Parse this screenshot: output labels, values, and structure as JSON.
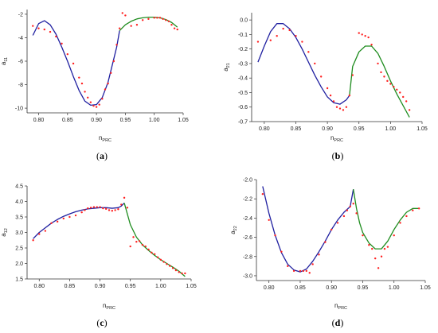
{
  "colors": {
    "blue": "#1f1fa0",
    "green": "#1e8c1e",
    "red": "#ff2020",
    "axis": "#333333"
  },
  "chart_data": [
    {
      "type": "scatter",
      "caption": {
        "open": "(",
        "letter": "a",
        "close": ")"
      },
      "xlabel": {
        "main": "n",
        "sub": "PRC"
      },
      "ylabel": {
        "main": "a",
        "sub": "11"
      },
      "xlim": [
        0.78,
        1.05
      ],
      "ylim": [
        -10.4,
        -1.6
      ],
      "xticks": [
        0.8,
        0.85,
        0.9,
        0.95,
        1.0,
        1.05
      ],
      "xtick_labels": [
        "0.80",
        "0.85",
        "0.90",
        "0.95",
        "1.00",
        "1.05"
      ],
      "yticks": [
        -10,
        -8,
        -6,
        -4,
        -2
      ],
      "ytick_labels": [
        "-10",
        "-8",
        "-6",
        "-4",
        "-2"
      ],
      "series": [
        {
          "kind": "line",
          "color": "blue",
          "x": [
            0.79,
            0.8,
            0.81,
            0.82,
            0.83,
            0.84,
            0.85,
            0.86,
            0.87,
            0.88,
            0.89,
            0.9,
            0.91,
            0.92,
            0.93,
            0.935,
            0.94
          ],
          "y": [
            -3.8,
            -2.8,
            -2.55,
            -2.9,
            -3.7,
            -4.8,
            -6.0,
            -7.3,
            -8.5,
            -9.4,
            -9.75,
            -9.7,
            -9.1,
            -7.8,
            -5.8,
            -4.8,
            -3.4
          ]
        },
        {
          "kind": "line",
          "color": "green",
          "x": [
            0.94,
            0.95,
            0.96,
            0.97,
            0.98,
            0.99,
            1.0,
            1.01,
            1.02,
            1.03,
            1.04
          ],
          "y": [
            -3.4,
            -2.9,
            -2.6,
            -2.4,
            -2.3,
            -2.25,
            -2.25,
            -2.3,
            -2.45,
            -2.7,
            -3.1
          ]
        },
        {
          "kind": "points",
          "color": "red",
          "x": [
            0.79,
            0.8,
            0.81,
            0.82,
            0.83,
            0.84,
            0.85,
            0.86,
            0.87,
            0.875,
            0.88,
            0.885,
            0.89,
            0.895,
            0.9,
            0.905,
            0.91,
            0.915,
            0.92,
            0.925,
            0.93,
            0.935,
            0.94,
            0.945,
            0.95,
            0.96,
            0.97,
            0.98,
            0.99,
            1.0,
            1.005,
            1.01,
            1.015,
            1.02,
            1.025,
            1.03,
            1.035,
            1.04
          ],
          "y": [
            -3.0,
            -3.2,
            -3.3,
            -3.5,
            -3.9,
            -4.5,
            -5.4,
            -6.2,
            -7.4,
            -7.9,
            -8.6,
            -9.1,
            -9.5,
            -9.8,
            -9.9,
            -9.7,
            -9.2,
            -8.4,
            -7.9,
            -7.0,
            -6.0,
            -4.6,
            -3.2,
            -1.9,
            -2.1,
            -3.0,
            -2.9,
            -2.5,
            -2.4,
            -2.3,
            -2.3,
            -2.3,
            -2.4,
            -2.5,
            -2.6,
            -2.9,
            -3.2,
            -3.3
          ]
        }
      ]
    },
    {
      "type": "scatter",
      "caption": {
        "open": "(",
        "letter": "b",
        "close": ")"
      },
      "xlabel": {
        "main": "n",
        "sub": "PRC"
      },
      "ylabel": {
        "main": "a",
        "sub": "21"
      },
      "xlim": [
        0.78,
        1.05
      ],
      "ylim": [
        -0.7,
        0.05
      ],
      "xticks": [
        0.8,
        0.85,
        0.9,
        0.95,
        1.0,
        1.05
      ],
      "xtick_labels": [
        "0.80",
        "0.85",
        "0.90",
        "0.95",
        "1.00",
        "1.05"
      ],
      "yticks": [
        -0.7,
        -0.6,
        -0.5,
        -0.4,
        -0.3,
        -0.2,
        -0.1,
        0.0
      ],
      "ytick_labels": [
        "-0.7",
        "-0.6",
        "-0.5",
        "-0.4",
        "-0.3",
        "-0.2",
        "-0.1",
        "0.0"
      ],
      "series": [
        {
          "kind": "line",
          "color": "blue",
          "x": [
            0.79,
            0.8,
            0.81,
            0.82,
            0.83,
            0.84,
            0.85,
            0.86,
            0.87,
            0.88,
            0.89,
            0.9,
            0.91,
            0.92,
            0.93,
            0.935
          ],
          "y": [
            -0.29,
            -0.18,
            -0.08,
            -0.025,
            -0.025,
            -0.06,
            -0.12,
            -0.2,
            -0.29,
            -0.38,
            -0.46,
            -0.53,
            -0.57,
            -0.58,
            -0.55,
            -0.52
          ]
        },
        {
          "kind": "line",
          "color": "green",
          "x": [
            0.935,
            0.94,
            0.95,
            0.96,
            0.97,
            0.98,
            0.99,
            1.0,
            1.01,
            1.02,
            1.03
          ],
          "y": [
            -0.52,
            -0.32,
            -0.22,
            -0.18,
            -0.18,
            -0.23,
            -0.32,
            -0.42,
            -0.51,
            -0.59,
            -0.67
          ]
        },
        {
          "kind": "points",
          "color": "red",
          "x": [
            0.79,
            0.81,
            0.82,
            0.83,
            0.84,
            0.85,
            0.86,
            0.87,
            0.88,
            0.89,
            0.9,
            0.905,
            0.91,
            0.915,
            0.92,
            0.925,
            0.93,
            0.935,
            0.94,
            0.95,
            0.955,
            0.96,
            0.965,
            0.97,
            0.98,
            0.985,
            0.99,
            0.995,
            1.0,
            1.005,
            1.01,
            1.015,
            1.02,
            1.025,
            1.03
          ],
          "y": [
            -0.15,
            -0.14,
            -0.11,
            -0.06,
            -0.07,
            -0.11,
            -0.15,
            -0.22,
            -0.3,
            -0.39,
            -0.47,
            -0.52,
            -0.56,
            -0.6,
            -0.61,
            -0.62,
            -0.6,
            -0.52,
            -0.38,
            -0.09,
            -0.1,
            -0.11,
            -0.12,
            -0.17,
            -0.3,
            -0.36,
            -0.39,
            -0.42,
            -0.44,
            -0.46,
            -0.48,
            -0.5,
            -0.53,
            -0.56,
            -0.62
          ]
        }
      ]
    },
    {
      "type": "scatter",
      "caption": {
        "open": "(",
        "letter": "c",
        "close": ")"
      },
      "xlabel": {
        "main": "n",
        "sub": "PRC"
      },
      "ylabel": {
        "main": "a",
        "sub": "12"
      },
      "xlim": [
        0.78,
        1.05
      ],
      "ylim": [
        1.5,
        4.5
      ],
      "xticks": [
        0.8,
        0.85,
        0.9,
        0.95,
        1.0,
        1.05
      ],
      "xtick_labels": [
        "0.80",
        "0.85",
        "0.90",
        "0.95",
        "1.00",
        "1.05"
      ],
      "yticks": [
        1.5,
        2.0,
        2.5,
        3.0,
        3.5,
        4.0,
        4.5
      ],
      "ytick_labels": [
        "1.5",
        "2.0",
        "2.5",
        "3.0",
        "3.5",
        "4.0",
        "4.5"
      ],
      "series": [
        {
          "kind": "line",
          "color": "blue",
          "x": [
            0.79,
            0.8,
            0.81,
            0.82,
            0.83,
            0.84,
            0.85,
            0.86,
            0.87,
            0.88,
            0.89,
            0.9,
            0.91,
            0.92,
            0.93,
            0.935,
            0.94
          ],
          "y": [
            2.8,
            3.0,
            3.15,
            3.3,
            3.42,
            3.52,
            3.6,
            3.67,
            3.72,
            3.76,
            3.78,
            3.8,
            3.8,
            3.78,
            3.8,
            3.85,
            3.95
          ]
        },
        {
          "kind": "line",
          "color": "green",
          "x": [
            0.94,
            0.95,
            0.96,
            0.97,
            0.98,
            0.99,
            1.0,
            1.01,
            1.02,
            1.03,
            1.04
          ],
          "y": [
            3.95,
            3.25,
            2.85,
            2.6,
            2.42,
            2.26,
            2.12,
            2.0,
            1.88,
            1.75,
            1.58
          ]
        },
        {
          "kind": "points",
          "color": "red",
          "x": [
            0.79,
            0.8,
            0.81,
            0.82,
            0.83,
            0.84,
            0.85,
            0.86,
            0.87,
            0.875,
            0.88,
            0.885,
            0.89,
            0.895,
            0.9,
            0.905,
            0.91,
            0.915,
            0.92,
            0.925,
            0.93,
            0.935,
            0.94,
            0.945,
            0.95,
            0.955,
            0.96,
            0.965,
            0.97,
            0.975,
            0.98,
            0.985,
            0.99,
            0.995,
            1.0,
            1.005,
            1.01,
            1.015,
            1.02,
            1.025,
            1.03,
            1.035,
            1.04
          ],
          "y": [
            2.75,
            2.95,
            3.05,
            3.3,
            3.35,
            3.45,
            3.5,
            3.55,
            3.65,
            3.72,
            3.78,
            3.8,
            3.82,
            3.82,
            3.82,
            3.78,
            3.76,
            3.72,
            3.7,
            3.72,
            3.75,
            3.9,
            4.12,
            3.8,
            2.55,
            2.85,
            2.7,
            2.72,
            2.6,
            2.55,
            2.45,
            2.35,
            2.3,
            2.2,
            2.12,
            2.05,
            1.98,
            1.92,
            1.85,
            1.78,
            1.72,
            1.68,
            1.68
          ]
        }
      ]
    },
    {
      "type": "scatter",
      "caption": {
        "open": "(",
        "letter": "d",
        "close": ")"
      },
      "xlabel": {
        "main": "n",
        "sub": "PRC"
      },
      "ylabel": {
        "main": "a",
        "sub": "22"
      },
      "xlim": [
        0.78,
        1.05
      ],
      "ylim": [
        -3.05,
        -2.0
      ],
      "xticks": [
        0.8,
        0.85,
        0.9,
        0.95,
        1.0,
        1.05
      ],
      "xtick_labels": [
        "0.80",
        "0.85",
        "0.90",
        "0.95",
        "1.00",
        "1.05"
      ],
      "yticks": [
        -3.0,
        -2.8,
        -2.6,
        -2.4,
        -2.2,
        -2.0
      ],
      "ytick_labels": [
        "-3.0",
        "-2.8",
        "-2.6",
        "-2.4",
        "-2.2",
        "-2.0"
      ],
      "series": [
        {
          "kind": "line",
          "color": "blue",
          "x": [
            0.79,
            0.8,
            0.81,
            0.82,
            0.83,
            0.84,
            0.85,
            0.86,
            0.87,
            0.88,
            0.89,
            0.9,
            0.91,
            0.92,
            0.93,
            0.935
          ],
          "y": [
            -2.07,
            -2.35,
            -2.58,
            -2.76,
            -2.88,
            -2.94,
            -2.96,
            -2.93,
            -2.85,
            -2.75,
            -2.64,
            -2.52,
            -2.42,
            -2.34,
            -2.28,
            -2.1
          ]
        },
        {
          "kind": "line",
          "color": "green",
          "x": [
            0.935,
            0.94,
            0.945,
            0.95,
            0.96,
            0.97,
            0.98,
            0.99,
            1.0,
            1.01,
            1.02,
            1.03,
            1.04
          ],
          "y": [
            -2.1,
            -2.3,
            -2.45,
            -2.55,
            -2.66,
            -2.72,
            -2.72,
            -2.64,
            -2.52,
            -2.42,
            -2.34,
            -2.3,
            -2.3
          ]
        },
        {
          "kind": "points",
          "color": "red",
          "x": [
            0.79,
            0.8,
            0.81,
            0.82,
            0.83,
            0.84,
            0.85,
            0.855,
            0.86,
            0.865,
            0.87,
            0.88,
            0.89,
            0.9,
            0.91,
            0.92,
            0.925,
            0.93,
            0.935,
            0.94,
            0.95,
            0.96,
            0.965,
            0.97,
            0.975,
            0.98,
            0.985,
            0.99,
            1.0,
            1.01,
            1.02,
            1.03,
            1.04
          ],
          "y": [
            -2.15,
            -2.42,
            -2.58,
            -2.75,
            -2.9,
            -2.95,
            -2.95,
            -2.95,
            -2.95,
            -2.97,
            -2.88,
            -2.78,
            -2.65,
            -2.52,
            -2.45,
            -2.38,
            -2.32,
            -2.28,
            -2.25,
            -2.35,
            -2.58,
            -2.68,
            -2.72,
            -2.82,
            -2.92,
            -2.8,
            -2.72,
            -2.7,
            -2.58,
            -2.45,
            -2.38,
            -2.32,
            -2.3
          ]
        }
      ]
    }
  ]
}
